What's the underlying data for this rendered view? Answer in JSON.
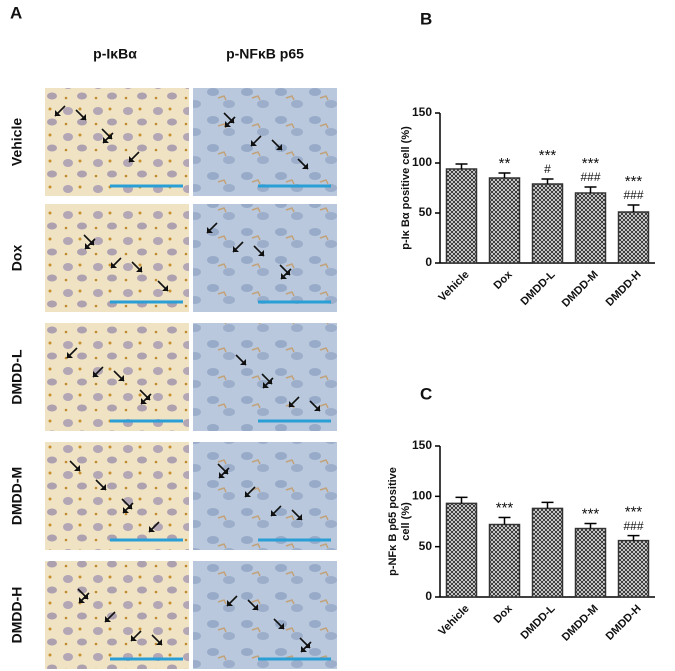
{
  "panel_a": {
    "letter": "A",
    "columns": [
      "p-IκBα",
      "p-NFκB p65"
    ],
    "rows": [
      "Vehicle",
      "Dox",
      "DMDD-L",
      "DMDD-M",
      "DMDD-H"
    ]
  },
  "chart_data": [
    {
      "type": "bar",
      "panel": "B",
      "ylabel": [
        "p-Iκ Bα  positive cell (%)"
      ],
      "categories": [
        "Vehicle",
        "Dox",
        "DMDD-L",
        "DMDD-M",
        "DMDD-H"
      ],
      "values": [
        94,
        85,
        79,
        70,
        51
      ],
      "errors": [
        5,
        5,
        5,
        6,
        7
      ],
      "annotations": [
        null,
        [
          "**"
        ],
        [
          "***",
          "#"
        ],
        [
          "***",
          "###"
        ],
        [
          "***",
          "###"
        ]
      ],
      "color": "#333333",
      "ylim": [
        0,
        150
      ],
      "yticks": [
        0,
        50,
        100,
        150
      ]
    },
    {
      "type": "bar",
      "panel": "C",
      "ylabel": [
        "p-NFκ B p65 positive",
        "cell (%)"
      ],
      "categories": [
        "Vehicle",
        "Dox",
        "DMDD-L",
        "DMDD-M",
        "DMDD-H"
      ],
      "values": [
        93,
        72,
        88,
        68,
        56
      ],
      "errors": [
        6,
        7,
        6,
        5,
        5
      ],
      "annotations": [
        null,
        [
          "***"
        ],
        null,
        [
          "***"
        ],
        [
          "***",
          "###"
        ]
      ],
      "color": "#333333",
      "ylim": [
        0,
        150
      ],
      "yticks": [
        0,
        50,
        100,
        150
      ]
    }
  ]
}
